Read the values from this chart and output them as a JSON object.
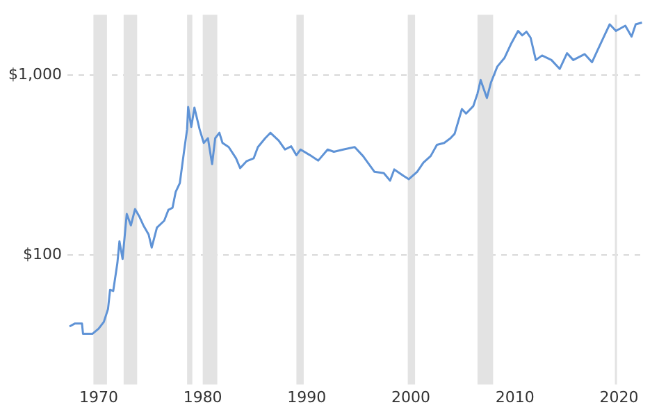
{
  "chart_data": {
    "type": "line",
    "log": "y",
    "grid": "y",
    "marker": "none",
    "line_style": "solid",
    "xlim": [
      1967,
      2022.5
    ],
    "xticks": [
      1970,
      1980,
      1990,
      2000,
      2010,
      2020
    ],
    "ylim": [
      19,
      2170
    ],
    "yticks": [
      {
        "value": 100,
        "label": "$100"
      },
      {
        "value": 1000,
        "label": "$1,000"
      }
    ],
    "bands": [
      {
        "axis": "x",
        "from": 1969.5,
        "to": 1970.8,
        "color": "#e3e3e3"
      },
      {
        "axis": "x",
        "from": 1972.4,
        "to": 1973.7,
        "color": "#e3e3e3"
      },
      {
        "axis": "x",
        "from": 1978.5,
        "to": 1979.0,
        "color": "#e3e3e3"
      },
      {
        "axis": "x",
        "from": 1980.0,
        "to": 1981.4,
        "color": "#e3e3e3"
      },
      {
        "axis": "x",
        "from": 1989.0,
        "to": 1989.7,
        "color": "#e3e3e3"
      },
      {
        "axis": "x",
        "from": 1999.7,
        "to": 2000.4,
        "color": "#e3e3e3"
      },
      {
        "axis": "x",
        "from": 2006.4,
        "to": 2007.9,
        "color": "#e3e3e3"
      },
      {
        "axis": "x",
        "from": 2019.6,
        "to": 2019.8,
        "color": "#e3e3e3"
      }
    ],
    "series": [
      {
        "color": "#5f93d6",
        "x": [
          1967.2,
          1967.7,
          1968.4,
          1968.5,
          1969.4,
          1970.0,
          1970.5,
          1970.9,
          1971.1,
          1971.4,
          1971.8,
          1972.0,
          1972.3,
          1972.7,
          1973.1,
          1973.5,
          1973.9,
          1974.3,
          1974.8,
          1975.1,
          1975.6,
          1976.3,
          1976.7,
          1977.1,
          1977.4,
          1977.8,
          1978.2,
          1978.5,
          1978.6,
          1978.9,
          1979.2,
          1979.7,
          1980.1,
          1980.5,
          1980.9,
          1981.2,
          1981.6,
          1981.9,
          1982.5,
          1983.2,
          1983.6,
          1984.2,
          1984.9,
          1985.3,
          1986.0,
          1986.5,
          1987.3,
          1987.9,
          1988.5,
          1989.0,
          1989.4,
          1990.3,
          1991.1,
          1992.0,
          1992.6,
          1993.5,
          1994.6,
          1995.4,
          1996.5,
          1997.4,
          1998.0,
          1998.4,
          1999.3,
          1999.8,
          2000.6,
          2001.2,
          2001.9,
          2002.5,
          2003.2,
          2003.8,
          2004.2,
          2004.9,
          2005.3,
          2006.0,
          2006.4,
          2006.7,
          2007.3,
          2007.7,
          2008.3,
          2009.0,
          2009.6,
          2010.3,
          2010.7,
          2011.1,
          2011.5,
          2012.0,
          2012.6,
          2013.5,
          2014.3,
          2015.0,
          2015.6,
          2016.7,
          2017.4,
          2018.0,
          2018.6,
          2019.1,
          2019.7,
          2020.6,
          2021.2,
          2021.6,
          2022.2
        ],
        "values": [
          40,
          41.5,
          41.5,
          36.4,
          36.4,
          38.9,
          42.4,
          50,
          64,
          63,
          90,
          119,
          95,
          169,
          146,
          180,
          164,
          146,
          130,
          110,
          142,
          155,
          178,
          183,
          224,
          251,
          375,
          500,
          665,
          515,
          660,
          500,
          420,
          446,
          320,
          446,
          478,
          420,
          398,
          345,
          304,
          332,
          345,
          398,
          446,
          478,
          433,
          386,
          402,
          359,
          386,
          359,
          335,
          386,
          375,
          386,
          398,
          355,
          290,
          285,
          259,
          299,
          275,
          264,
          290,
          326,
          355,
          410,
          420,
          446,
          472,
          648,
          612,
          674,
          791,
          939,
          747,
          913,
          1116,
          1250,
          1485,
          1763,
          1666,
          1745,
          1617,
          1215,
          1287,
          1215,
          1084,
          1325,
          1215,
          1310,
          1181,
          1404,
          1666,
          1919,
          1763,
          1886,
          1640,
          1919,
          1962
        ]
      }
    ]
  }
}
